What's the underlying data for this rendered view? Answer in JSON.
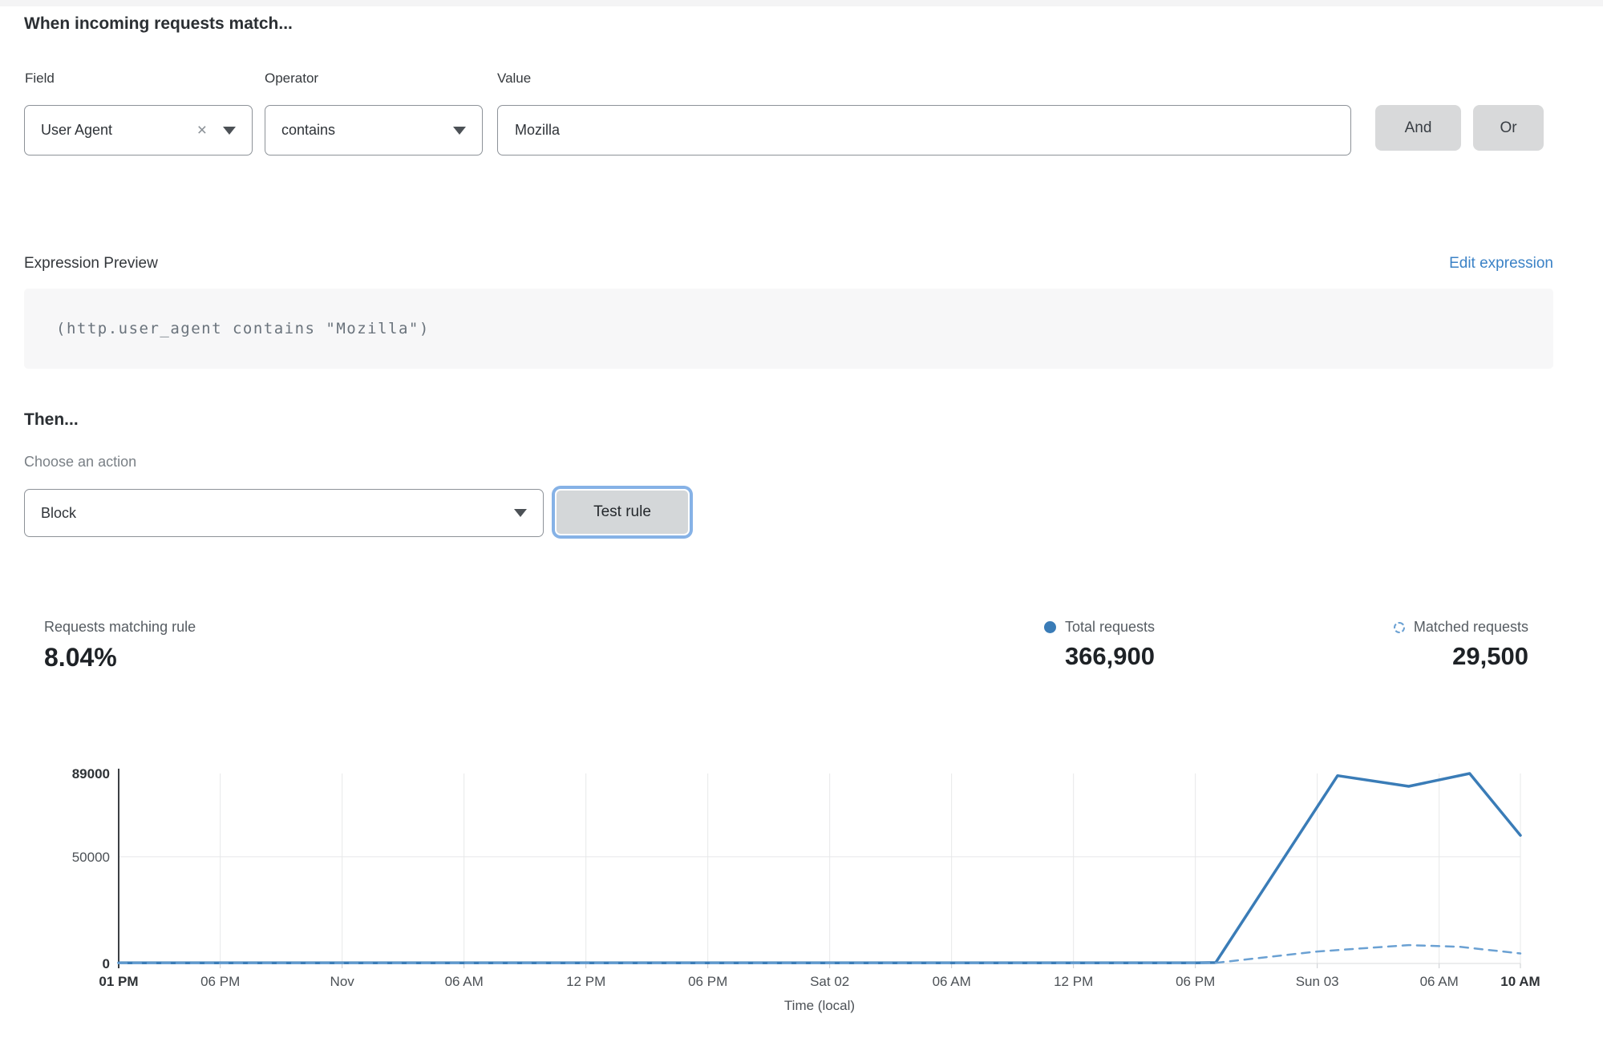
{
  "rule_builder": {
    "heading": "When incoming requests match...",
    "field": {
      "label": "Field",
      "value": "User Agent"
    },
    "operator": {
      "label": "Operator",
      "value": "contains"
    },
    "value": {
      "label": "Value",
      "value": "Mozilla"
    },
    "and_label": "And",
    "or_label": "Or"
  },
  "expression": {
    "label": "Expression Preview",
    "edit_link": "Edit expression",
    "code": "(http.user_agent contains \"Mozilla\")"
  },
  "action": {
    "heading": "Then...",
    "choose_label": "Choose an action",
    "selected": "Block",
    "test_button": "Test rule"
  },
  "stats": {
    "matching_label": "Requests matching rule",
    "matching_value": "8.04%",
    "legend": [
      {
        "label": "Total requests",
        "value": "366,900",
        "marker": "solid-dot",
        "color": "#3a7cb7"
      },
      {
        "label": "Matched requests",
        "value": "29,500",
        "marker": "dashed-circle",
        "color": "#6ba1d3"
      }
    ]
  },
  "chart_data": {
    "type": "line",
    "title": "",
    "xlabel": "Time (local)",
    "ylabel": "",
    "x_unit": "hours from Thu 01 PM",
    "xlim": [
      0,
      69
    ],
    "ylim": [
      0,
      89000
    ],
    "grid": true,
    "legend_position": "top-right",
    "y_ticks": [
      {
        "value": 89000,
        "label": "89000",
        "bold": true
      },
      {
        "value": 50000,
        "label": "50000",
        "bold": false
      },
      {
        "value": 0,
        "label": "0",
        "bold": true
      }
    ],
    "x_ticks": [
      {
        "hour": 0,
        "label": "01 PM",
        "bold": true
      },
      {
        "hour": 5,
        "label": "06 PM",
        "bold": false
      },
      {
        "hour": 11,
        "label": "Nov",
        "bold": false
      },
      {
        "hour": 17,
        "label": "06 AM",
        "bold": false
      },
      {
        "hour": 23,
        "label": "12 PM",
        "bold": false
      },
      {
        "hour": 29,
        "label": "06 PM",
        "bold": false
      },
      {
        "hour": 35,
        "label": "Sat 02",
        "bold": false
      },
      {
        "hour": 41,
        "label": "06 AM",
        "bold": false
      },
      {
        "hour": 47,
        "label": "12 PM",
        "bold": false
      },
      {
        "hour": 53,
        "label": "06 PM",
        "bold": false
      },
      {
        "hour": 59,
        "label": "Sun 03",
        "bold": false
      },
      {
        "hour": 65,
        "label": "06 AM",
        "bold": false
      },
      {
        "hour": 69,
        "label": "10 AM",
        "bold": true
      }
    ],
    "series": [
      {
        "name": "Total requests",
        "style": "solid",
        "color": "#3a7cb7",
        "points": [
          [
            0,
            300
          ],
          [
            5,
            300
          ],
          [
            11,
            300
          ],
          [
            17,
            300
          ],
          [
            23,
            300
          ],
          [
            29,
            300
          ],
          [
            35,
            300
          ],
          [
            41,
            300
          ],
          [
            47,
            300
          ],
          [
            53,
            300
          ],
          [
            54,
            400
          ],
          [
            60,
            88000
          ],
          [
            63.5,
            83000
          ],
          [
            66.5,
            89000
          ],
          [
            69,
            60000
          ]
        ]
      },
      {
        "name": "Matched requests",
        "style": "dashed",
        "color": "#6ba1d3",
        "points": [
          [
            0,
            150
          ],
          [
            5,
            150
          ],
          [
            11,
            150
          ],
          [
            17,
            150
          ],
          [
            23,
            150
          ],
          [
            29,
            150
          ],
          [
            35,
            150
          ],
          [
            41,
            150
          ],
          [
            47,
            150
          ],
          [
            53,
            150
          ],
          [
            54,
            300
          ],
          [
            59,
            5600
          ],
          [
            63.5,
            8600
          ],
          [
            66,
            7800
          ],
          [
            69,
            4700
          ]
        ]
      }
    ]
  }
}
